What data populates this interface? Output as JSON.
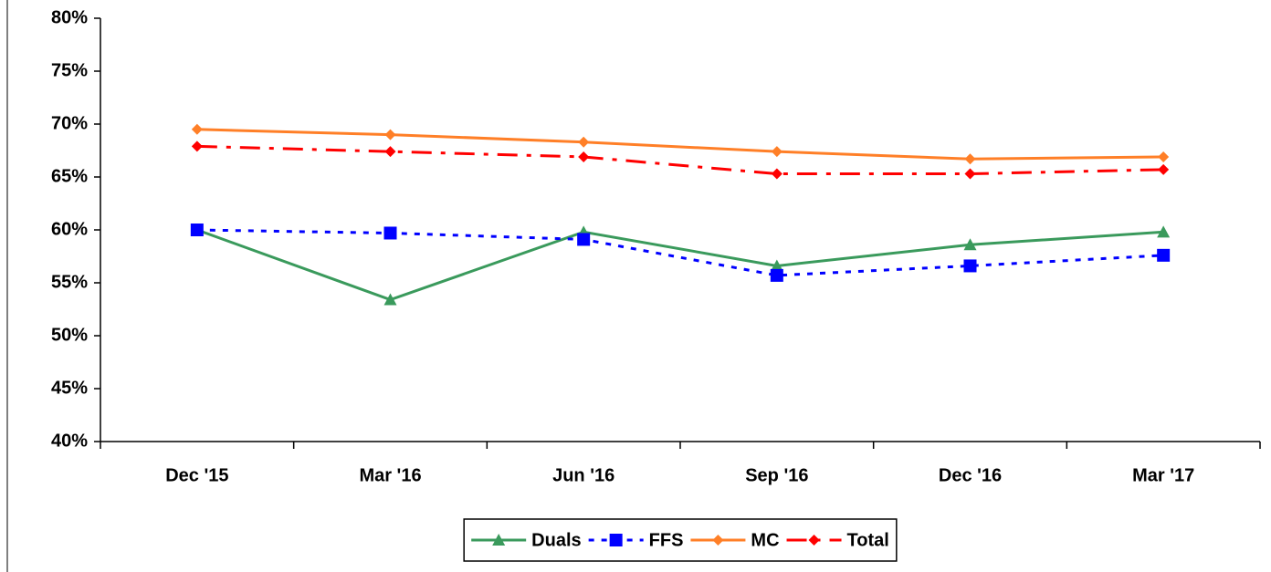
{
  "chart_data": {
    "type": "line",
    "categories": [
      "Dec '15",
      "Mar '16",
      "Jun '16",
      "Sep '16",
      "Dec '16",
      "Mar '17"
    ],
    "series": [
      {
        "name": "Duals",
        "color": "#3a9a5c",
        "line_style": "solid",
        "marker": "triangle",
        "values": [
          60.0,
          53.4,
          59.8,
          56.6,
          58.6,
          59.8
        ]
      },
      {
        "name": "FFS",
        "color": "#0000ff",
        "line_style": "dashed",
        "marker": "square",
        "values": [
          60.0,
          59.7,
          59.1,
          55.7,
          56.6,
          57.6
        ]
      },
      {
        "name": "MC",
        "color": "#ff7f27",
        "line_style": "solid",
        "marker": "diamond",
        "values": [
          69.5,
          69.0,
          68.3,
          67.4,
          66.7,
          66.9
        ]
      },
      {
        "name": "Total",
        "color": "#ff0000",
        "line_style": "dashdot",
        "marker": "diamond",
        "values": [
          67.9,
          67.4,
          66.9,
          65.3,
          65.3,
          65.7
        ]
      }
    ],
    "ylim": [
      40,
      80
    ],
    "yticks": [
      {
        "value": 40,
        "label": "40%"
      },
      {
        "value": 45,
        "label": "45%"
      },
      {
        "value": 50,
        "label": "50%"
      },
      {
        "value": 55,
        "label": "55%"
      },
      {
        "value": 60,
        "label": "60%"
      },
      {
        "value": 65,
        "label": "65%"
      },
      {
        "value": 70,
        "label": "70%"
      },
      {
        "value": 75,
        "label": "75%"
      },
      {
        "value": 80,
        "label": "80%"
      }
    ],
    "grid": false,
    "legend": "bottom"
  }
}
